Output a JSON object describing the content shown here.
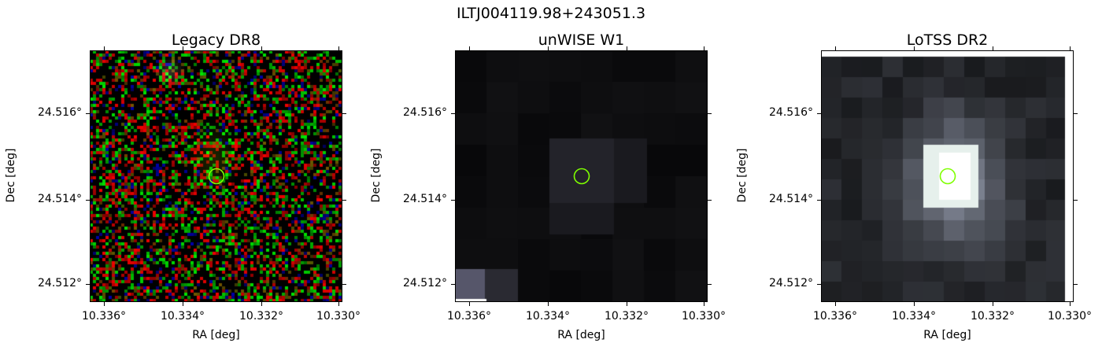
{
  "figure": {
    "title": "ILTJ004119.98+243051.3"
  },
  "panels": [
    {
      "id": "legacy",
      "title": "Legacy DR8",
      "style": "rgb-noise",
      "xlabel": "RA [deg]",
      "ylabel": "Dec [deg]",
      "xticks": [
        "10.336°",
        "10.334°",
        "10.332°",
        "10.330°"
      ],
      "yticks": [
        "24.516°",
        "24.514°",
        "24.512°"
      ]
    },
    {
      "id": "unwise",
      "title": "unWISE W1",
      "style": "dark-blocks",
      "xlabel": "RA [deg]",
      "ylabel": "Dec [deg]",
      "xticks": [
        "10.336°",
        "10.334°",
        "10.332°",
        "10.330°"
      ],
      "yticks": [
        "24.516°",
        "24.514°",
        "24.512°"
      ]
    },
    {
      "id": "lotss",
      "title": "LoTSS DR2",
      "style": "bone-blocks",
      "xlabel": "RA [deg]",
      "ylabel": "Dec [deg]",
      "xticks": [
        "10.336°",
        "10.334°",
        "10.332°",
        "10.330°"
      ],
      "yticks": [
        "24.516°",
        "24.514°",
        "24.512°"
      ]
    }
  ],
  "marker": {
    "color": "#7fff00",
    "shape": "circle"
  }
}
